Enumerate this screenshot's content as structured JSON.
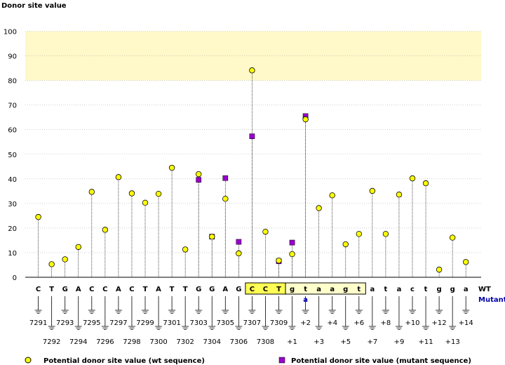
{
  "chart_data": {
    "type": "scatter",
    "title": "",
    "ylabel": "Donor site value",
    "xlabel": "",
    "ylim": [
      0,
      100
    ],
    "yticks": [
      0,
      10,
      20,
      30,
      40,
      50,
      60,
      70,
      80,
      90,
      100
    ],
    "grid": true,
    "highlight_band": [
      80,
      100
    ],
    "highlight_color": "#fff8c8",
    "row_labels": {
      "wt": "WT",
      "mutant": "Mutant"
    },
    "bases": [
      "C",
      "T",
      "G",
      "A",
      "C",
      "C",
      "A",
      "C",
      "T",
      "A",
      "T",
      "T",
      "G",
      "G",
      "A",
      "G",
      "C",
      "C",
      "T",
      "g",
      "t",
      "a",
      "a",
      "g",
      "t",
      "a",
      "t",
      "a",
      "c",
      "t",
      "g",
      "g",
      "a"
    ],
    "highlighted_exon": [
      16,
      17,
      18
    ],
    "boxed_intron": [
      19,
      20,
      21,
      22,
      23,
      24
    ],
    "mutant_base": {
      "index": 20,
      "value": "a"
    },
    "positions": [
      "7291",
      "7292",
      "7293",
      "7294",
      "7295",
      "7296",
      "7297",
      "7298",
      "7299",
      "7300",
      "7301",
      "7302",
      "7303",
      "7304",
      "7305",
      "7306",
      "7307",
      "7308",
      "7309",
      "+1",
      "+2",
      "+3",
      "+4",
      "+5",
      "+6",
      "+7",
      "+8",
      "+9",
      "+10",
      "+11",
      "+12",
      "+13",
      "+14"
    ],
    "series": [
      {
        "name": "Potential donor site value (wt sequence)",
        "marker": "circle",
        "color": "#ffff00",
        "values": [
          24.5,
          5.3,
          7.3,
          12.3,
          34.7,
          19.3,
          40.7,
          34.1,
          30.3,
          33.9,
          44.5,
          11.3,
          41.9,
          16.5,
          31.9,
          9.7,
          84.1,
          18.5,
          6.8,
          9.4,
          64.2,
          28.1,
          33.3,
          13.4,
          17.6,
          35.1,
          17.6,
          33.6,
          40.2,
          38.2,
          3.1,
          16.1,
          6.2
        ]
      },
      {
        "name": "Potential donor site value (mutant sequence)",
        "marker": "square",
        "color": "#9900cc",
        "indices": [
          12,
          13,
          14,
          15,
          16,
          18,
          19,
          20
        ],
        "values": [
          39.6,
          16.5,
          40.3,
          14.4,
          57.3,
          6.5,
          14.1,
          65.5
        ]
      }
    ]
  }
}
